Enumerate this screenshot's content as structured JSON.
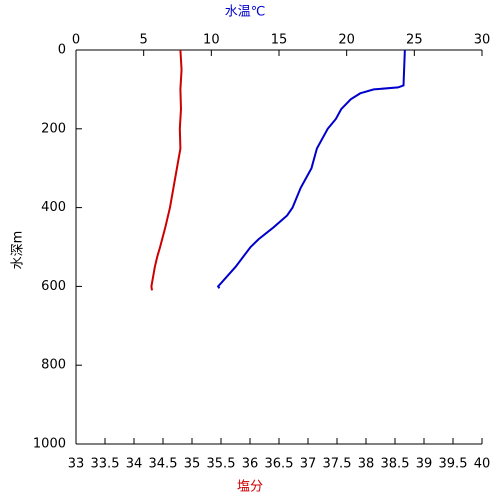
{
  "chart_data": {
    "type": "profile",
    "x_label": "塩分",
    "x_label_color": "#cc0000",
    "x2_label": "水温℃",
    "x2_label_color": "#0000cc",
    "y_label": "水深m",
    "xlim": [
      33,
      40
    ],
    "xticks": [
      33,
      33.5,
      34,
      34.5,
      35,
      35.5,
      36,
      36.5,
      37,
      37.5,
      38,
      38.5,
      39,
      39.5,
      40
    ],
    "x2lim": [
      0,
      30
    ],
    "x2ticks": [
      0,
      5,
      10,
      15,
      20,
      25,
      30
    ],
    "ylim": [
      0,
      1000
    ],
    "yticks": [
      0,
      200,
      400,
      600,
      800,
      1000
    ],
    "y_inverted": true,
    "series": [
      {
        "color": "#0000cc",
        "axis": "x2",
        "x": [
          24.3,
          24.2,
          23.8,
          22.0,
          21.0,
          20.3,
          19.6,
          19.2,
          18.6,
          17.8,
          17.4,
          16.6,
          16.0,
          15.6,
          14.6,
          13.5,
          12.9,
          11.8,
          10.5,
          10.6
        ],
        "y": [
          0,
          90,
          95,
          100,
          110,
          125,
          150,
          175,
          200,
          250,
          300,
          350,
          400,
          420,
          450,
          480,
          500,
          550,
          600,
          605
        ]
      },
      {
        "color": "#cc0000",
        "axis": "x",
        "x": [
          34.8,
          34.82,
          34.8,
          34.81,
          34.79,
          34.8,
          34.74,
          34.68,
          34.62,
          34.54,
          34.45,
          34.4,
          34.36,
          34.3,
          34.31
        ],
        "y": [
          0,
          50,
          100,
          150,
          200,
          250,
          300,
          350,
          400,
          450,
          500,
          525,
          550,
          600,
          610
        ]
      }
    ]
  }
}
